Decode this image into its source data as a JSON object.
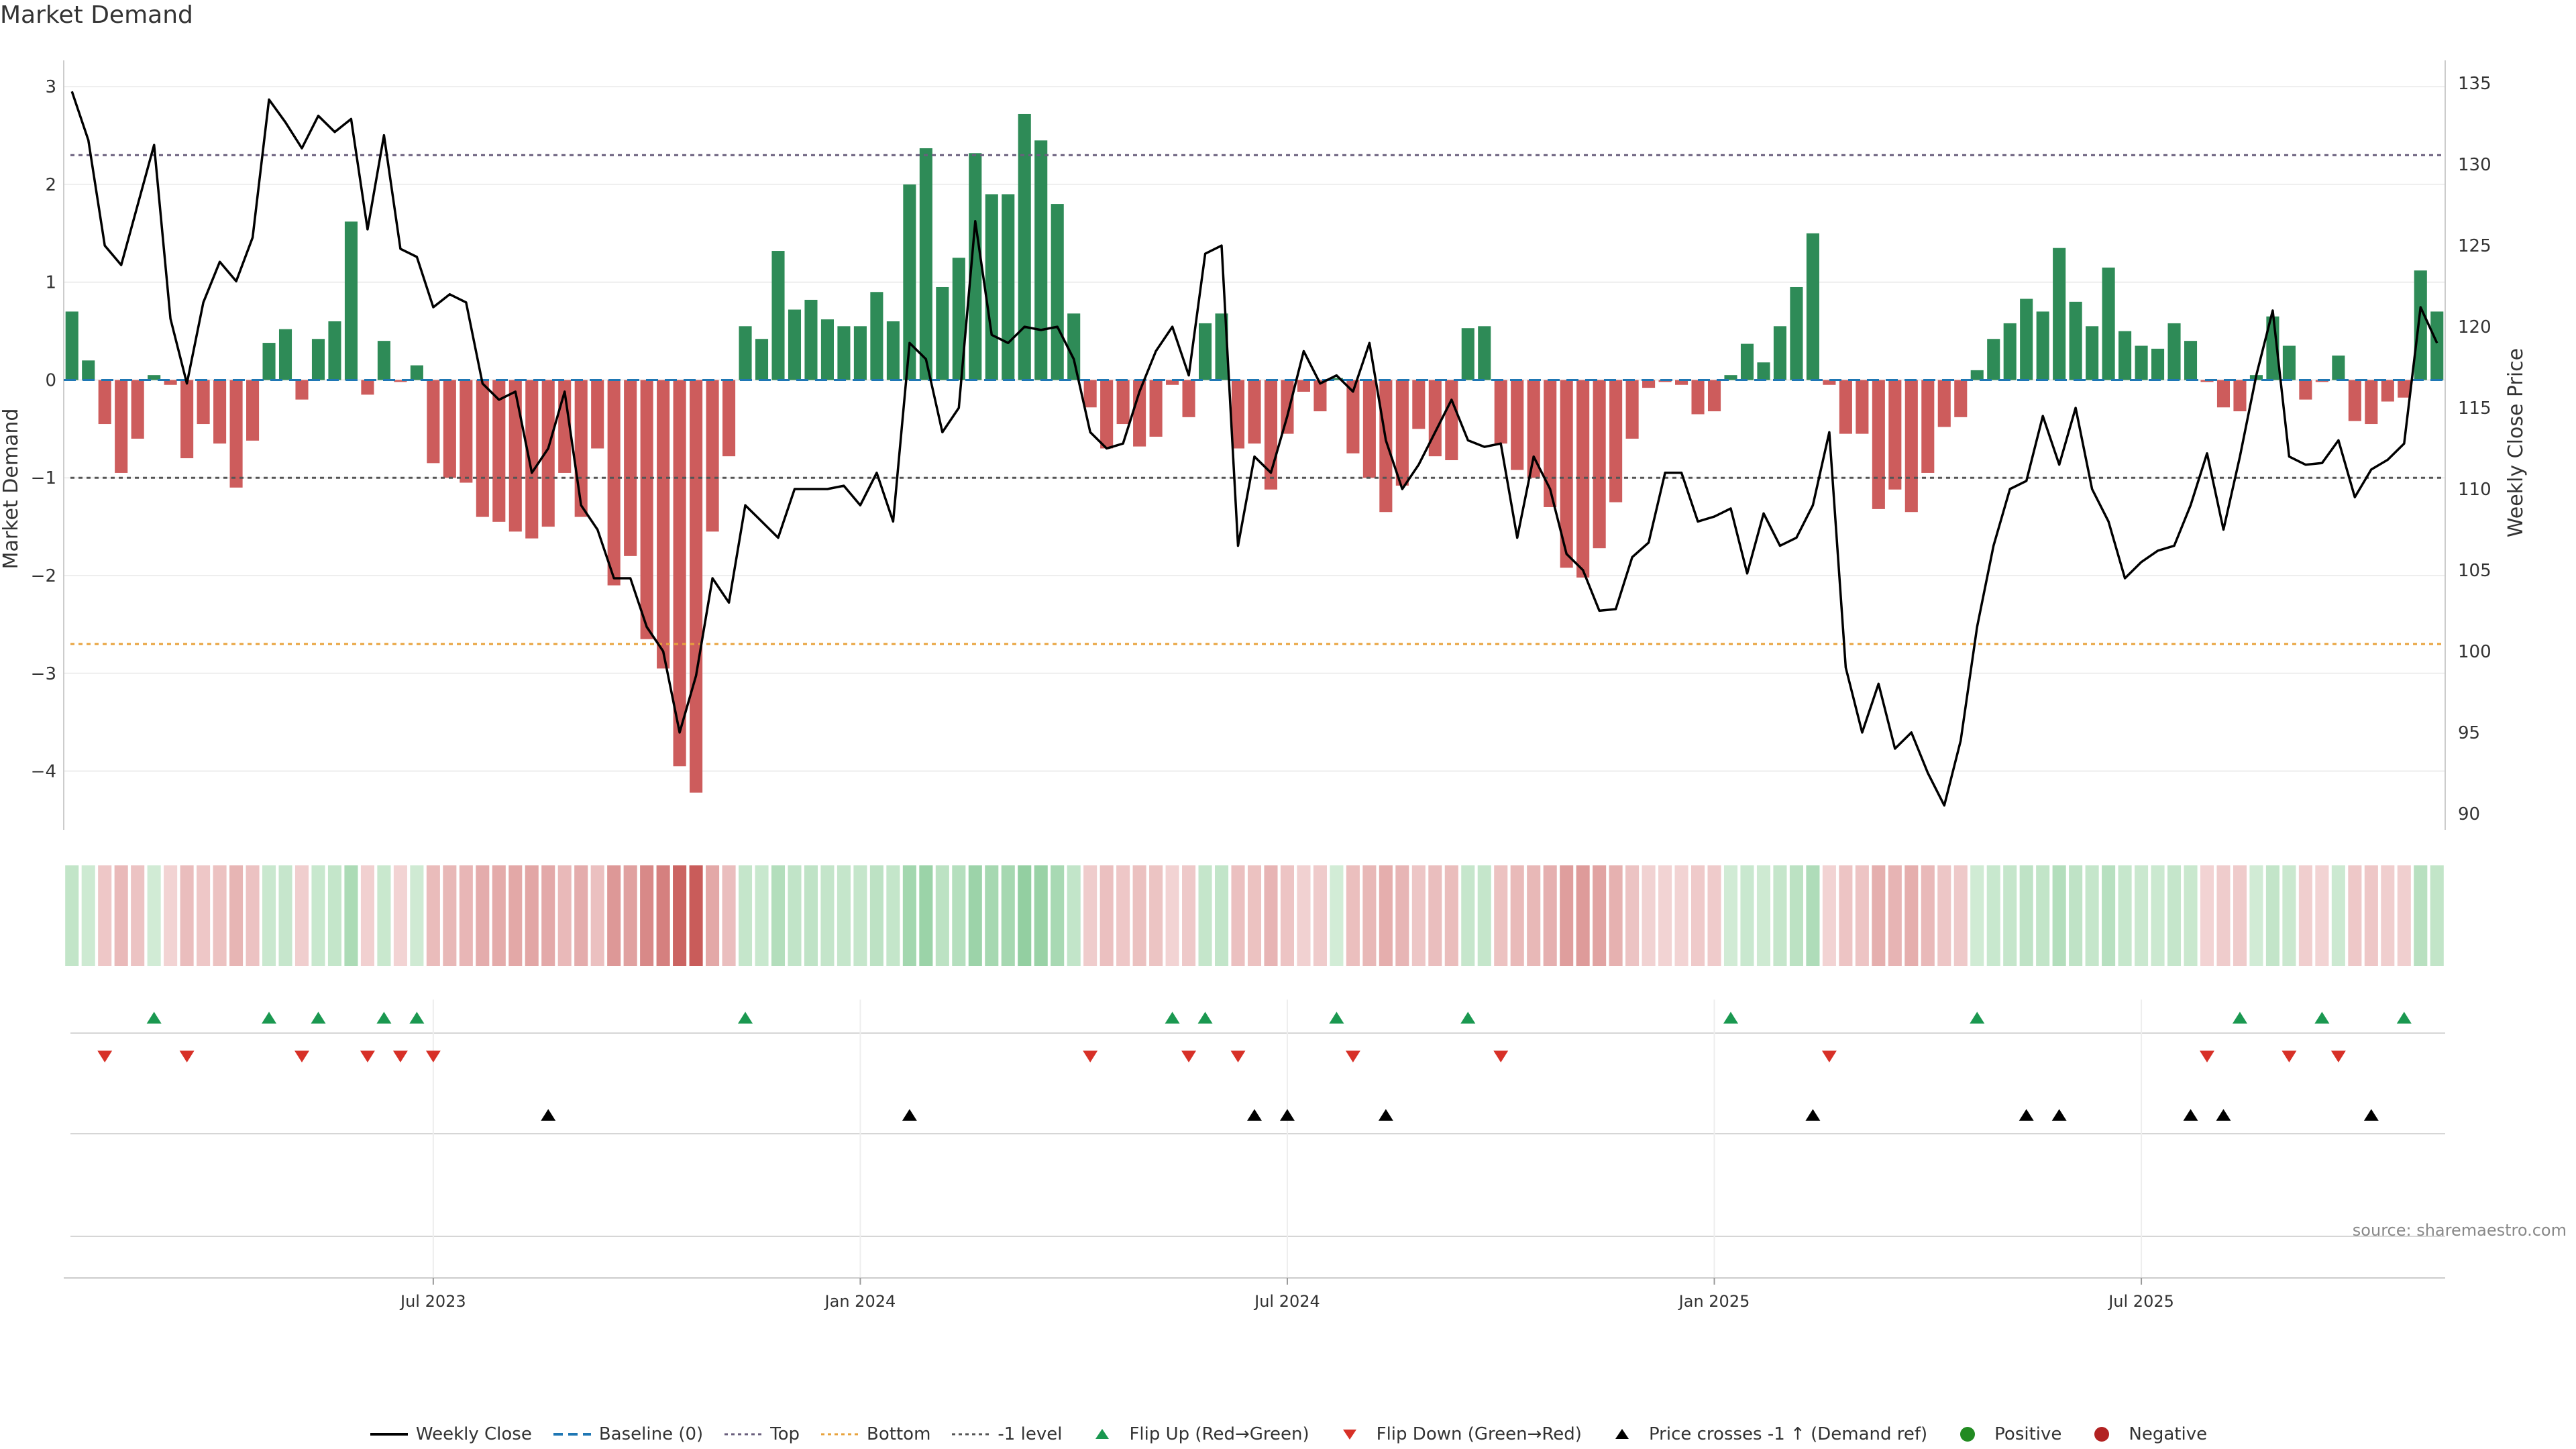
{
  "title": "Market Demand",
  "source": "source: sharemaestro.com",
  "colors": {
    "positive": "#2e8b57",
    "negative": "#cd5c5c",
    "flip_up": "#1a9850",
    "flip_down": "#d73027",
    "cross": "#000000",
    "line": "#000000",
    "top": "#6a5f7d",
    "bottom": "#e8a33d",
    "minus_one": "#555555",
    "baseline": "#1f77b4"
  },
  "chart_data": {
    "type": "bar",
    "x_axis": {
      "ticks": [
        "Jul 2023",
        "Jan 2024",
        "Jul 2024",
        "Jan 2025",
        "Jul 2025"
      ],
      "tick_weeks": [
        22,
        48,
        74,
        100,
        126
      ]
    },
    "left_axis": {
      "label": "Market Demand",
      "ylim": [
        -4.6,
        3.2
      ],
      "ticks": [
        3,
        2,
        1,
        0,
        -1,
        -2,
        -3,
        -4
      ],
      "tick_labels": [
        "3",
        "2",
        "1",
        "0",
        "−1",
        "−2",
        "−3",
        "−4"
      ]
    },
    "right_axis": {
      "label": "Weekly Close Price",
      "ylim": [
        89,
        136
      ],
      "ticks": [
        135,
        130,
        125,
        120,
        115,
        110,
        105,
        100,
        95,
        90
      ],
      "tick_labels": [
        "135",
        "130",
        "125",
        "120",
        "115",
        "110",
        "105",
        "100",
        "95",
        "90"
      ]
    },
    "reference_lines": {
      "top": 2.3,
      "bottom": -2.7,
      "minus_one": -1
    },
    "series": [
      {
        "name": "Market Demand",
        "axis": "left",
        "style": "bar",
        "values": [
          0.7,
          0.2,
          -0.45,
          -0.95,
          -0.6,
          0.05,
          -0.05,
          -0.8,
          -0.45,
          -0.65,
          -1.1,
          -0.62,
          0.38,
          0.52,
          -0.2,
          0.42,
          0.6,
          1.62,
          -0.15,
          0.4,
          -0.02,
          0.15,
          -0.85,
          -1.0,
          -1.05,
          -1.4,
          -1.45,
          -1.55,
          -1.62,
          -1.5,
          -0.95,
          -1.4,
          -0.7,
          -2.1,
          -1.8,
          -2.65,
          -2.95,
          -3.95,
          -4.22,
          -1.55,
          -0.78,
          0.55,
          0.42,
          1.32,
          0.72,
          0.82,
          0.62,
          0.55,
          0.55,
          0.9,
          0.6,
          2.0,
          2.37,
          0.95,
          1.25,
          2.32,
          1.9,
          1.9,
          2.72,
          2.45,
          1.8,
          0.68,
          -0.28,
          -0.7,
          -0.45,
          -0.68,
          -0.58,
          -0.05,
          -0.38,
          0.58,
          0.68,
          -0.7,
          -0.65,
          -1.12,
          -0.55,
          -0.12,
          -0.32,
          0.02,
          -0.75,
          -1.0,
          -1.35,
          -1.08,
          -0.5,
          -0.78,
          -0.82,
          0.53,
          0.55,
          -0.65,
          -0.92,
          -1.0,
          -1.3,
          -1.92,
          -2.02,
          -1.72,
          -1.25,
          -0.6,
          -0.08,
          -0.02,
          -0.05,
          -0.35,
          -0.32,
          0.05,
          0.37,
          0.18,
          0.55,
          0.95,
          1.5,
          -0.05,
          -0.55,
          -0.55,
          -1.32,
          -1.12,
          -1.35,
          -0.95,
          -0.48,
          -0.38,
          0.1,
          0.42,
          0.58,
          0.83,
          0.7,
          1.35,
          0.8,
          0.55,
          1.15,
          0.5,
          0.35,
          0.32,
          0.58,
          0.4,
          -0.02,
          -0.28,
          -0.32,
          0.05,
          0.65,
          0.35,
          -0.2,
          -0.02,
          0.25,
          -0.42,
          -0.45,
          -0.22,
          -0.18,
          1.12,
          0.7
        ]
      },
      {
        "name": "Weekly Close",
        "axis": "right",
        "style": "line",
        "values": [
          134.5,
          131.5,
          125.0,
          123.8,
          127.5,
          131.2,
          120.5,
          116.5,
          121.5,
          124.0,
          122.8,
          125.5,
          134.0,
          132.6,
          131.0,
          133.0,
          132.0,
          132.8,
          126.0,
          131.8,
          124.8,
          124.3,
          121.2,
          122.0,
          121.5,
          116.5,
          115.5,
          116.0,
          111.0,
          112.5,
          116.0,
          109.0,
          107.5,
          104.5,
          104.5,
          101.5,
          100.0,
          95.0,
          98.5,
          104.5,
          103.0,
          109.0,
          108.0,
          107.0,
          110.0,
          110.0,
          110.0,
          110.2,
          109.0,
          111.0,
          108.0,
          119.0,
          118.0,
          113.5,
          115.0,
          126.5,
          119.5,
          119.0,
          120.0,
          119.8,
          120.0,
          118.0,
          113.5,
          112.5,
          112.8,
          116.0,
          118.5,
          120.0,
          117.0,
          124.5,
          125.0,
          106.5,
          112.0,
          111.0,
          114.5,
          118.5,
          116.5,
          117.0,
          116.0,
          119.0,
          113.0,
          110.0,
          111.5,
          113.5,
          115.5,
          113.0,
          112.6,
          112.8,
          107.0,
          112.0,
          110.0,
          106.0,
          105.0,
          102.5,
          102.6,
          105.8,
          106.7,
          111.0,
          111.0,
          108.0,
          108.3,
          108.8,
          104.8,
          108.5,
          106.5,
          107.0,
          109.0,
          113.5,
          99.0,
          95.0,
          98.0,
          94.0,
          95.0,
          92.5,
          90.5,
          94.5,
          101.5,
          106.5,
          110.0,
          110.5,
          114.5,
          111.5,
          115.0,
          110.0,
          108.0,
          104.5,
          105.5,
          106.2,
          106.5,
          109.0,
          112.2,
          107.5,
          112.0,
          117.0,
          121.0,
          112.0,
          111.5,
          111.6,
          113.0,
          109.5,
          111.2,
          111.8,
          112.8,
          121.2,
          119.0
        ]
      }
    ],
    "flip_up_weeks": [
      5,
      12,
      15,
      19,
      21,
      41,
      67,
      69,
      77,
      85,
      101,
      116,
      132,
      137,
      142
    ],
    "flip_down_weeks": [
      2,
      7,
      14,
      18,
      20,
      22,
      62,
      68,
      71,
      78,
      87,
      107,
      130,
      135,
      138
    ],
    "price_cross_weeks": [
      29,
      51,
      72,
      74,
      80,
      106,
      119,
      121,
      129,
      131,
      140
    ]
  },
  "legend": [
    {
      "label": "Weekly Close",
      "icon": "solid-line-icon",
      "color_key": "line"
    },
    {
      "label": "Baseline (0)",
      "icon": "dashed-line-icon",
      "color_key": "baseline"
    },
    {
      "label": "Top",
      "icon": "dotted-line-icon",
      "color_key": "top"
    },
    {
      "label": "Bottom",
      "icon": "dotted-line-icon",
      "color_key": "bottom"
    },
    {
      "label": "-1 level",
      "icon": "dotted-line-icon",
      "color_key": "minus_one"
    },
    {
      "label": "Flip Up (Red→Green)",
      "icon": "triangle-up-icon",
      "color_key": "flip_up"
    },
    {
      "label": "Flip Down (Green→Red)",
      "icon": "triangle-down-icon",
      "color_key": "flip_down"
    },
    {
      "label": "Price crosses -1 ↑ (Demand ref)",
      "icon": "triangle-up-icon",
      "color_key": "cross"
    },
    {
      "label": "Positive",
      "icon": "circle-icon",
      "color_key": "positive"
    },
    {
      "label": "Negative",
      "icon": "circle-icon",
      "color_key": "negative"
    }
  ]
}
